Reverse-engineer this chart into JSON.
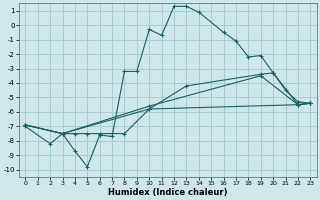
{
  "xlabel": "Humidex (Indice chaleur)",
  "bg_color": "#cce8e8",
  "grid_color": "#aacccc",
  "line_color": "#1a6060",
  "xlim": [
    -0.5,
    23.5
  ],
  "ylim": [
    -10.5,
    1.5
  ],
  "xticks": [
    0,
    1,
    2,
    3,
    4,
    5,
    6,
    7,
    8,
    9,
    10,
    11,
    12,
    13,
    14,
    15,
    16,
    17,
    18,
    19,
    20,
    21,
    22,
    23
  ],
  "yticks": [
    -10,
    -9,
    -8,
    -7,
    -6,
    -5,
    -4,
    -3,
    -2,
    -1,
    0,
    1
  ],
  "series": [
    {
      "x": [
        0,
        2,
        3,
        4,
        5,
        6,
        7,
        8,
        9,
        10,
        11,
        12,
        13,
        14,
        16,
        17,
        18,
        19,
        20,
        21,
        22,
        23
      ],
      "y": [
        -7.0,
        -8.2,
        -7.5,
        -8.7,
        -9.8,
        -7.6,
        -7.7,
        -3.2,
        -3.2,
        -0.3,
        -0.7,
        1.3,
        1.3,
        0.9,
        -0.5,
        -1.1,
        -2.2,
        -2.1,
        -3.3,
        -4.5,
        -5.3,
        -5.4
      ]
    },
    {
      "x": [
        0,
        3,
        4,
        5,
        6,
        8,
        10,
        13,
        19,
        20,
        22,
        23
      ],
      "y": [
        -6.9,
        -7.5,
        -7.5,
        -7.5,
        -7.5,
        -7.5,
        -5.8,
        -4.2,
        -3.4,
        -3.3,
        -5.5,
        -5.4
      ]
    },
    {
      "x": [
        0,
        3,
        10,
        19,
        22,
        23
      ],
      "y": [
        -6.9,
        -7.5,
        -5.6,
        -3.5,
        -5.5,
        -5.4
      ]
    },
    {
      "x": [
        0,
        3,
        10,
        22,
        23
      ],
      "y": [
        -6.9,
        -7.5,
        -5.8,
        -5.5,
        -5.4
      ]
    }
  ]
}
